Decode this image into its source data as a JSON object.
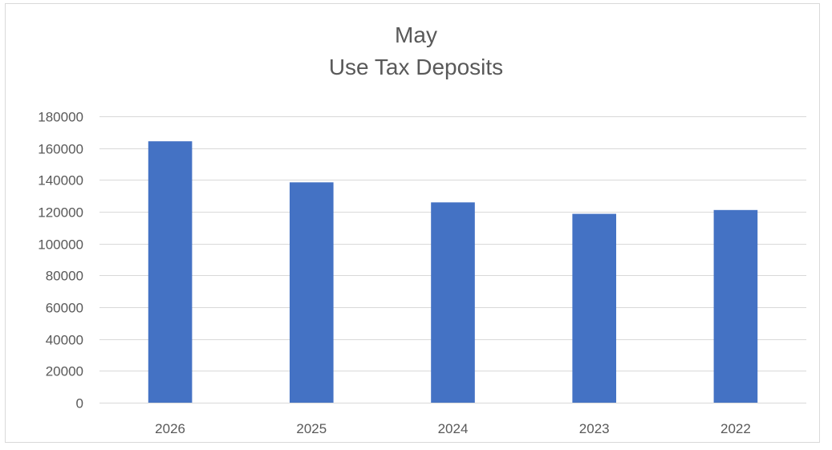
{
  "chart_data": {
    "type": "bar",
    "title": [
      "May",
      "Use Tax Deposits"
    ],
    "categories": [
      "2026",
      "2025",
      "2024",
      "2023",
      "2022"
    ],
    "values": [
      164300,
      138500,
      125900,
      118700,
      121100
    ],
    "ylim": [
      0,
      180000
    ],
    "yticks": [
      0,
      20000,
      40000,
      60000,
      80000,
      100000,
      120000,
      140000,
      160000,
      180000
    ],
    "ytick_labels": [
      "0",
      "20000",
      "40000",
      "60000",
      "80000",
      "100000",
      "120000",
      "140000",
      "160000",
      "180000"
    ],
    "xlabel": "",
    "ylabel": "",
    "grid": true,
    "legend": "none",
    "colors": {
      "bar": "#4472c4",
      "gridline": "#d9d9d9",
      "axis_text": "#595959"
    }
  }
}
